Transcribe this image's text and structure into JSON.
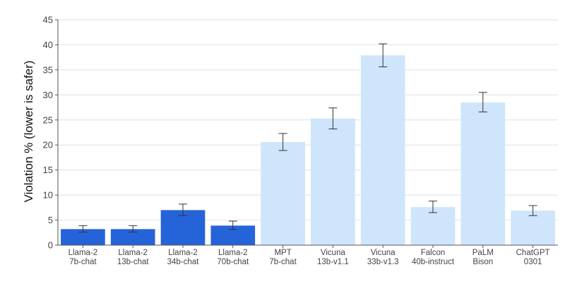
{
  "chart_data": {
    "type": "bar",
    "ylabel": "Violation % (lower is safer)",
    "xlabel": "",
    "ylim": [
      0,
      45
    ],
    "yticks": [
      0,
      5,
      10,
      15,
      20,
      25,
      30,
      35,
      40,
      45
    ],
    "grid": true,
    "categories": [
      [
        "Llama-2",
        "7b-chat"
      ],
      [
        "Llama-2",
        "13b-chat"
      ],
      [
        "Llama-2",
        "34b-chat"
      ],
      [
        "Llama-2",
        "70b-chat"
      ],
      [
        "MPT",
        "7b-chat"
      ],
      [
        "Vicuna",
        "13b-v1.1"
      ],
      [
        "Vicuna",
        "33b-v1.3"
      ],
      [
        "Falcon",
        "40b-instruct"
      ],
      [
        "PaLM",
        "Bison"
      ],
      [
        "ChatGPT",
        "0301"
      ]
    ],
    "values": [
      3.2,
      3.2,
      7.0,
      3.9,
      20.6,
      25.3,
      37.9,
      7.6,
      28.5,
      6.9
    ],
    "error_low": [
      2.6,
      2.6,
      5.9,
      3.1,
      18.9,
      23.2,
      35.6,
      6.5,
      26.6,
      5.9
    ],
    "error_high": [
      3.9,
      3.9,
      8.2,
      4.8,
      22.3,
      27.4,
      40.2,
      8.8,
      30.5,
      7.9
    ],
    "colors": {
      "highlight": "#2563d9",
      "other": "#cfe5fb",
      "errorbar": "#333333",
      "grid": "#e6e6e6",
      "axis": "#555555"
    },
    "highlight": [
      true,
      true,
      true,
      true,
      false,
      false,
      false,
      false,
      false,
      false
    ]
  }
}
